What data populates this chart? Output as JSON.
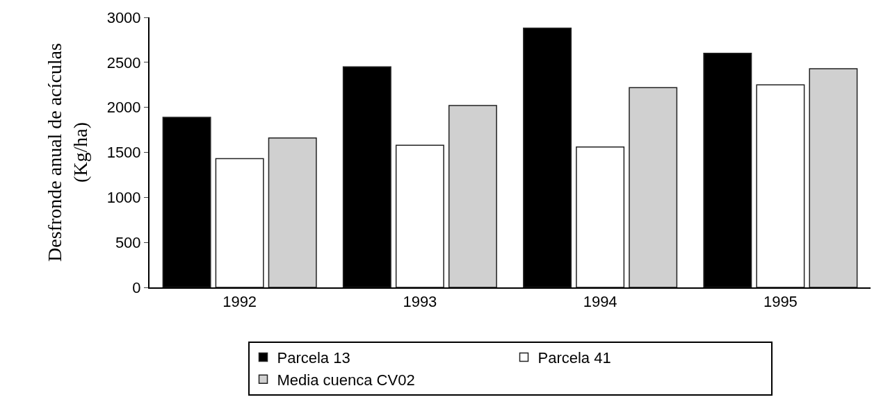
{
  "chart_data": {
    "type": "bar",
    "ylabel": "Desfronde anual de acículas\n(Kg/ha)",
    "categories": [
      "1992",
      "1993",
      "1994",
      "1995"
    ],
    "series": [
      {
        "name": "Parcela 13",
        "color": "#000000",
        "values": [
          1890,
          2450,
          2880,
          2600
        ]
      },
      {
        "name": "Parcela 41",
        "color": "#ffffff",
        "values": [
          1430,
          1580,
          1560,
          2250
        ]
      },
      {
        "name": "Media cuenca CV02",
        "color": "#d0d0d0",
        "values": [
          1660,
          2020,
          2220,
          2430
        ]
      }
    ],
    "ylim": [
      0,
      3000
    ],
    "yticks": [
      0,
      500,
      1000,
      1500,
      2000,
      2500,
      3000
    ],
    "grid": false,
    "legend": "bottom"
  }
}
